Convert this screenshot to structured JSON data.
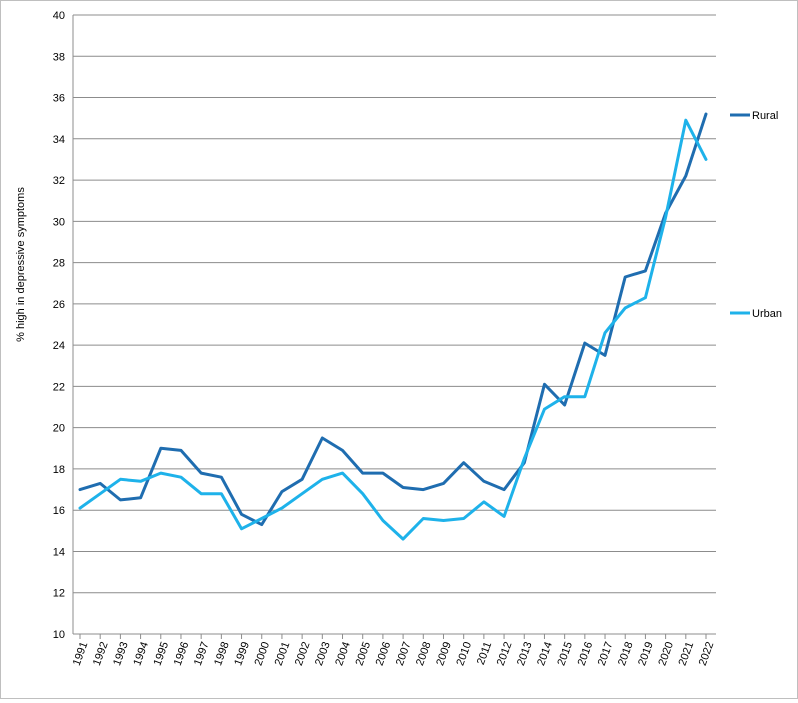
{
  "chart_data": {
    "type": "line",
    "title": "",
    "xlabel": "",
    "ylabel": "% high in depressive symptoms",
    "ylim": [
      10,
      40
    ],
    "y_ticks": [
      10,
      12,
      14,
      16,
      18,
      20,
      22,
      24,
      26,
      28,
      30,
      32,
      34,
      36,
      38,
      40
    ],
    "grid": "horizontal",
    "legend_position": "right",
    "categories": [
      "1991",
      "1992",
      "1993",
      "1994",
      "1995",
      "1996",
      "1997",
      "1998",
      "1999",
      "2000",
      "2001",
      "2002",
      "2003",
      "2004",
      "2005",
      "2006",
      "2007",
      "2008",
      "2009",
      "2010",
      "2011",
      "2012",
      "2013",
      "2014",
      "2015",
      "2016",
      "2017",
      "2018",
      "2019",
      "2020",
      "2021",
      "2022"
    ],
    "series": [
      {
        "name": "Rural",
        "color": "#1f6db0",
        "values": [
          17.0,
          17.3,
          16.5,
          16.6,
          19.0,
          18.9,
          17.8,
          17.6,
          15.8,
          15.3,
          16.9,
          17.5,
          19.5,
          18.9,
          17.8,
          17.8,
          17.1,
          17.0,
          17.3,
          18.3,
          17.4,
          17.0,
          18.3,
          22.1,
          21.1,
          24.1,
          23.5,
          27.3,
          27.6,
          30.4,
          32.2,
          35.2
        ]
      },
      {
        "name": "Urban",
        "color": "#1eb2ea",
        "values": [
          16.1,
          16.8,
          17.5,
          17.4,
          17.8,
          17.6,
          16.8,
          16.8,
          15.1,
          15.6,
          16.1,
          16.8,
          17.5,
          17.8,
          16.8,
          15.5,
          14.6,
          15.6,
          15.5,
          15.6,
          16.4,
          15.7,
          18.5,
          20.9,
          21.5,
          21.5,
          24.6,
          25.8,
          26.3,
          30.2,
          34.9,
          33.0
        ]
      }
    ]
  }
}
